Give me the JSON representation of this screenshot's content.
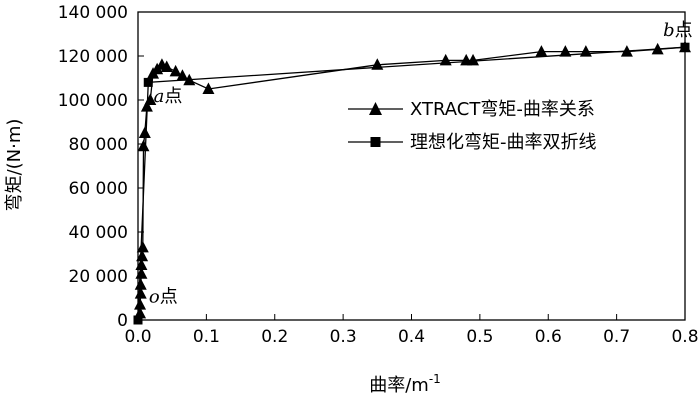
{
  "chart_data": {
    "type": "line",
    "xlabel_main": "曲率/m",
    "xlabel_sup": "-1",
    "ylabel": "弯矩/(N·m)",
    "xlim": [
      0,
      0.8
    ],
    "ylim": [
      0,
      140000
    ],
    "x_ticks": [
      0,
      0.1,
      0.2,
      0.3,
      0.4,
      0.5,
      0.6,
      0.7,
      0.8
    ],
    "x_tick_labels": [
      "0.0",
      "0.1",
      "0.2",
      "0.3",
      "0.4",
      "0.5",
      "0.6",
      "0.7",
      "0.8"
    ],
    "y_ticks": [
      0,
      20000,
      40000,
      60000,
      80000,
      100000,
      120000,
      140000
    ],
    "y_tick_labels": [
      "0",
      "20 000",
      "40 000",
      "60 000",
      "80 000",
      "100 000",
      "120 000",
      "140 000"
    ],
    "grid": false,
    "legend_position": "right",
    "series": [
      {
        "name": "XTRACT弯矩-曲率关系",
        "marker": "triangle",
        "color": "#000000",
        "x": [
          0.003,
          0.003,
          0.004,
          0.004,
          0.005,
          0.005,
          0.006,
          0.007,
          0.008,
          0.01,
          0.013,
          0.018,
          0.022,
          0.028,
          0.035,
          0.042,
          0.055,
          0.065,
          0.075,
          0.103,
          0.35,
          0.45,
          0.48,
          0.49,
          0.59,
          0.625,
          0.655,
          0.715,
          0.76,
          0.8
        ],
        "y": [
          3000,
          7000,
          12000,
          16000,
          21000,
          25000,
          29000,
          33000,
          79000,
          85000,
          97000,
          100000,
          112000,
          114000,
          116000,
          115000,
          113000,
          111000,
          109000,
          105000,
          116000,
          118000,
          118000,
          118000,
          122000,
          122000,
          122000,
          122000,
          123000,
          124000
        ]
      },
      {
        "name": "理想化弯矩-曲率双折线",
        "marker": "square",
        "color": "#000000",
        "x": [
          0.0,
          0.015,
          0.8
        ],
        "y": [
          0,
          108000,
          124000
        ]
      }
    ],
    "annotations": [
      {
        "italic": "a",
        "text": "点",
        "x": 0.02,
        "y": 99000
      },
      {
        "italic": "b",
        "text": "点",
        "x": 0.765,
        "y": 129000
      },
      {
        "italic": "o",
        "text": "点",
        "x": 0.013,
        "y": 8000
      }
    ]
  }
}
